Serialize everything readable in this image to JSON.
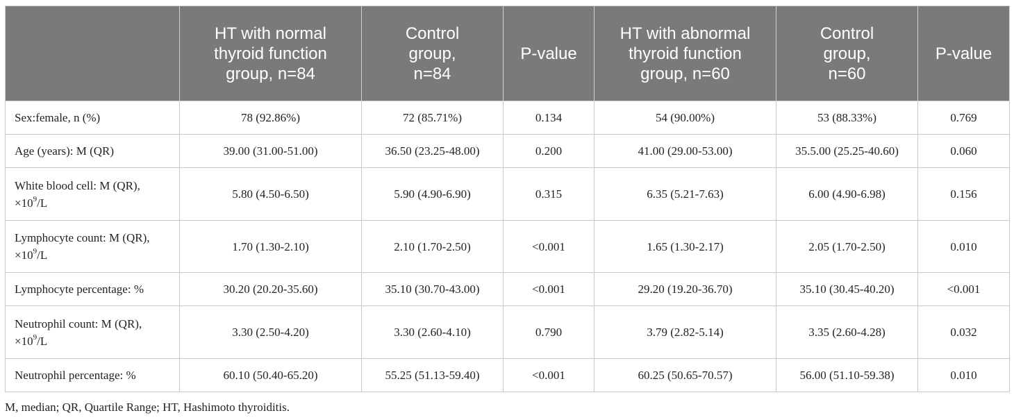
{
  "table": {
    "headers": [
      "",
      "HT with normal thyroid function group, n=84",
      "Control group, n=84",
      "P-value",
      "HT with abnormal thyroid function group, n=60",
      "Control group, n=60",
      "P-value"
    ],
    "rows": [
      {
        "label": "Sex:female, n (%)",
        "cells": [
          "78 (92.86%)",
          "72 (85.71%)",
          "0.134",
          "54 (90.00%)",
          "53 (88.33%)",
          "0.769"
        ]
      },
      {
        "label": "Age (years): M (QR)",
        "cells": [
          "39.00 (31.00-51.00)",
          "36.50 (23.25-48.00)",
          "0.200",
          "41.00 (29.00-53.00)",
          "35.5.00 (25.25-40.60)",
          "0.060"
        ]
      },
      {
        "label_pre": "White blood cell: M (QR), ×10",
        "label_sup": "9",
        "label_post": "/L",
        "cells": [
          "5.80 (4.50-6.50)",
          "5.90 (4.90-6.90)",
          "0.315",
          "6.35 (5.21-7.63)",
          "6.00 (4.90-6.98)",
          "0.156"
        ]
      },
      {
        "label_pre": "Lymphocyte count: M (QR), ×10",
        "label_sup": "9",
        "label_post": "/L",
        "cells": [
          "1.70 (1.30-2.10)",
          "2.10 (1.70-2.50)",
          "<0.001",
          "1.65 (1.30-2.17)",
          "2.05 (1.70-2.50)",
          "0.010"
        ]
      },
      {
        "label": "Lymphocyte percentage: %",
        "cells": [
          "30.20 (20.20-35.60)",
          "35.10 (30.70-43.00)",
          "<0.001",
          "29.20 (19.20-36.70)",
          "35.10 (30.45-40.20)",
          "<0.001"
        ]
      },
      {
        "label_pre": "Neutrophil count: M (QR), ×10",
        "label_sup": "9",
        "label_post": "/L",
        "cells": [
          "3.30 (2.50-4.20)",
          "3.30 (2.60-4.10)",
          "0.790",
          "3.79 (2.82-5.14)",
          "3.35 (2.60-4.28)",
          "0.032"
        ]
      },
      {
        "label": "Neutrophil percentage: %",
        "cells": [
          "60.10 (50.40-65.20)",
          "55.25 (51.13-59.40)",
          "<0.001",
          "60.25 (50.65-70.57)",
          "56.00 (51.10-59.38)",
          "0.010"
        ]
      }
    ]
  },
  "footnote": "M, median; QR, Quartile Range; HT, Hashimoto thyroiditis."
}
